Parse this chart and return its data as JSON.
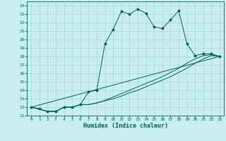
{
  "xlabel": "Humidex (Indice chaleur)",
  "bg_color": "#c8eef0",
  "grid_color": "#a0d0d0",
  "line_color": "#006060",
  "spine_color": "#006060",
  "ylim": [
    11,
    24.5
  ],
  "xlim": [
    -0.5,
    23.5
  ],
  "yticks": [
    11,
    12,
    13,
    14,
    15,
    16,
    17,
    18,
    19,
    20,
    21,
    22,
    23,
    24
  ],
  "xticks": [
    0,
    1,
    2,
    3,
    4,
    5,
    6,
    7,
    8,
    9,
    10,
    11,
    12,
    13,
    14,
    15,
    16,
    17,
    18,
    19,
    20,
    21,
    22,
    23
  ],
  "line1_x": [
    0,
    1,
    2,
    3,
    4,
    5,
    6,
    7,
    8,
    9,
    10,
    11,
    12,
    13,
    14,
    15,
    16,
    17,
    18,
    19,
    20,
    21,
    22,
    23
  ],
  "line1_y": [
    12,
    11.8,
    11.5,
    11.5,
    12,
    12,
    12.3,
    13.8,
    14.0,
    19.5,
    21.2,
    23.3,
    23.0,
    23.6,
    23.1,
    21.5,
    21.3,
    22.3,
    23.4,
    19.5,
    18.1,
    18.3,
    18.3,
    18.0
  ],
  "line2_x": [
    0,
    2,
    3,
    4,
    5,
    6,
    7,
    8,
    10,
    11,
    12,
    13,
    14,
    15,
    16,
    17,
    18,
    19,
    20,
    21,
    22,
    23
  ],
  "line2_y": [
    12,
    11.5,
    11.5,
    12,
    12,
    12.3,
    12.3,
    12.5,
    13.0,
    13.3,
    13.7,
    14.0,
    14.4,
    14.8,
    15.2,
    15.6,
    16.1,
    16.6,
    17.2,
    17.7,
    18.1,
    18.0
  ],
  "line3_x": [
    0,
    2,
    3,
    4,
    5,
    6,
    7,
    8,
    9,
    10,
    11,
    12,
    13,
    14,
    15,
    16,
    17,
    18,
    19,
    20,
    21,
    22,
    23
  ],
  "line3_y": [
    12,
    11.5,
    11.5,
    12,
    12,
    12.3,
    12.3,
    12.5,
    12.8,
    13.2,
    13.6,
    14.0,
    14.4,
    14.8,
    15.2,
    15.6,
    16.1,
    16.6,
    17.2,
    17.7,
    18.1,
    18.2,
    18.0
  ],
  "line4_x": [
    0,
    23
  ],
  "line4_y": [
    12,
    18.0
  ],
  "tick_fontsize": 4.5,
  "xlabel_fontsize": 6,
  "lw": 0.7,
  "marker_size": 2.5
}
